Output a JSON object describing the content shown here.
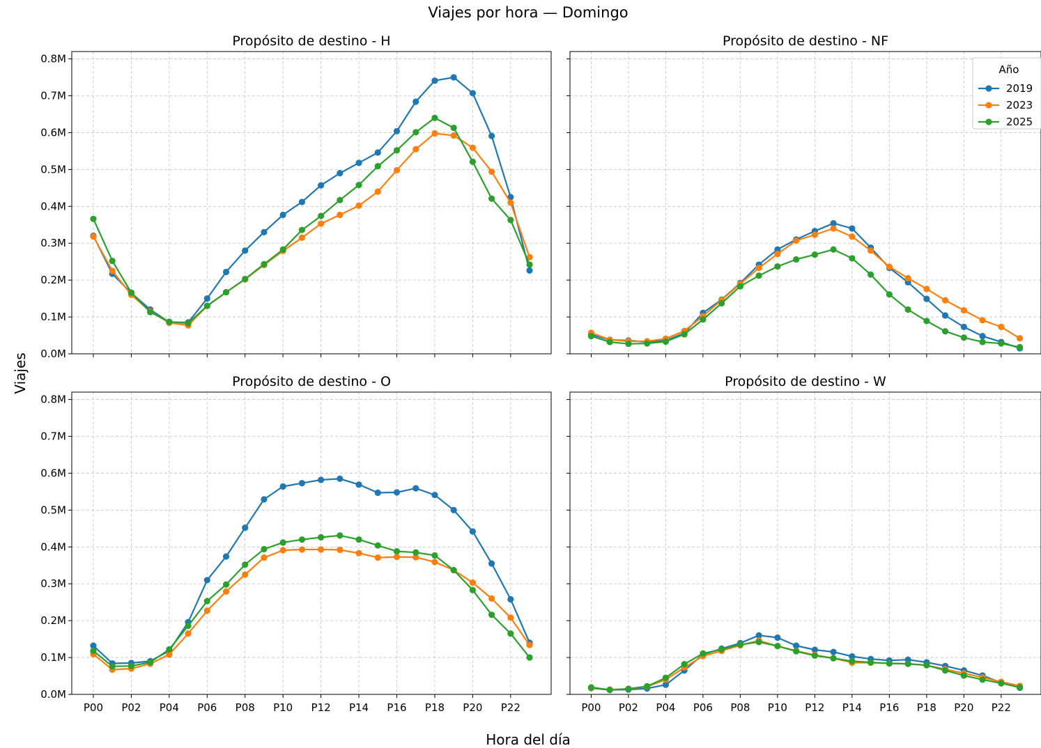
{
  "chart_data": {
    "type": "line",
    "title": "Viajes por hora — Domingo",
    "xlabel": "Hora del día",
    "ylabel": "Viajes",
    "ylim": [
      0,
      820000
    ],
    "y_ticks": [
      0,
      100000,
      200000,
      300000,
      400000,
      500000,
      600000,
      700000,
      800000
    ],
    "y_tick_labels": [
      "0.0M",
      "0.1M",
      "0.2M",
      "0.3M",
      "0.4M",
      "0.5M",
      "0.6M",
      "0.7M",
      "0.8M"
    ],
    "x": [
      "P00",
      "P01",
      "P02",
      "P03",
      "P04",
      "P05",
      "P06",
      "P07",
      "P08",
      "P09",
      "P10",
      "P11",
      "P12",
      "P13",
      "P14",
      "P15",
      "P16",
      "P17",
      "P18",
      "P19",
      "P20",
      "P21",
      "P22",
      "P23"
    ],
    "x_tick_labels": [
      "P00",
      "P02",
      "P04",
      "P06",
      "P08",
      "P10",
      "P12",
      "P14",
      "P16",
      "P18",
      "P20",
      "P22"
    ],
    "grid": true,
    "legend": {
      "title": "Año",
      "entries": [
        "2019",
        "2023",
        "2025"
      ],
      "placement": "top-right of panel NF"
    },
    "colors": {
      "2019": "#1f77b4",
      "2023": "#ff7f0e",
      "2025": "#2ca02c"
    },
    "panels": [
      {
        "title": "Propósito de destino - H",
        "series": [
          {
            "name": "2019",
            "values": [
              320000,
              217000,
              165000,
              120000,
              86000,
              85000,
              150000,
              222000,
              280000,
              330000,
              377000,
              412000,
              457000,
              490000,
              518000,
              546000,
              604000,
              684000,
              741000,
              750000,
              707000,
              591000,
              425000,
              226000
            ]
          },
          {
            "name": "2023",
            "values": [
              318000,
              225000,
              160000,
              115000,
              84000,
              77000,
              130000,
              167000,
              202000,
              241000,
              279000,
              315000,
              353000,
              377000,
              402000,
              440000,
              498000,
              555000,
              598000,
              592000,
              559000,
              494000,
              410000,
              262000
            ]
          },
          {
            "name": "2025",
            "values": [
              366000,
              252000,
              166000,
              113000,
              87000,
              83000,
              130000,
              167000,
              203000,
              243000,
              283000,
              336000,
              374000,
              417000,
              458000,
              509000,
              552000,
              601000,
              640000,
              613000,
              521000,
              421000,
              363000,
              242000
            ]
          }
        ]
      },
      {
        "title": "Propósito de destino - NF",
        "series": [
          {
            "name": "2019",
            "values": [
              52000,
              38000,
              36000,
              32000,
              36000,
              56000,
              111000,
              147000,
              192000,
              242000,
              283000,
              310000,
              333000,
              354000,
              340000,
              288000,
              233000,
              194000,
              149000,
              104000,
              73000,
              48000,
              32000,
              15000
            ]
          },
          {
            "name": "2023",
            "values": [
              57000,
              38000,
              34000,
              34000,
              41000,
              62000,
              102000,
              146000,
              190000,
              233000,
              271000,
              307000,
              323000,
              340000,
              318000,
              280000,
              236000,
              205000,
              176000,
              145000,
              118000,
              91000,
              73000,
              42000
            ]
          },
          {
            "name": "2025",
            "values": [
              48000,
              32000,
              27000,
              28000,
              33000,
              53000,
              93000,
              137000,
              183000,
              212000,
              237000,
              256000,
              269000,
              283000,
              259000,
              215000,
              161000,
              120000,
              89000,
              61000,
              44000,
              32000,
              28000,
              18000
            ]
          }
        ]
      },
      {
        "title": "Propósito de destino - O",
        "series": [
          {
            "name": "2019",
            "values": [
              132000,
              84000,
              85000,
              90000,
              118000,
              196000,
              310000,
              374000,
              452000,
              529000,
              564000,
              573000,
              582000,
              585000,
              569000,
              547000,
              548000,
              559000,
              541000,
              500000,
              442000,
              355000,
              258000,
              140000
            ]
          },
          {
            "name": "2023",
            "values": [
              109000,
              67000,
              70000,
              83000,
              108000,
              165000,
              227000,
              279000,
              325000,
              371000,
              391000,
              393000,
              393000,
              392000,
              383000,
              371000,
              373000,
              372000,
              359000,
              337000,
              303000,
              260000,
              208000,
              134000
            ]
          },
          {
            "name": "2025",
            "values": [
              118000,
              76000,
              77000,
              87000,
              122000,
              186000,
              253000,
              298000,
              352000,
              394000,
              412000,
              420000,
              426000,
              431000,
              420000,
              404000,
              388000,
              385000,
              377000,
              337000,
              283000,
              216000,
              165000,
              100000
            ]
          }
        ]
      },
      {
        "title": "Propósito de destino - W",
        "series": [
          {
            "name": "2019",
            "values": [
              17000,
              12000,
              13000,
              16000,
              26000,
              65000,
              108000,
              124000,
              139000,
              160000,
              154000,
              132000,
              121000,
              115000,
              103000,
              96000,
              92000,
              94000,
              87000,
              77000,
              65000,
              51000,
              32000,
              18000
            ]
          },
          {
            "name": "2023",
            "values": [
              18000,
              13000,
              15000,
              21000,
              40000,
              73000,
              104000,
              118000,
              133000,
              146000,
              131000,
              118000,
              107000,
              98000,
              86000,
              86000,
              84000,
              83000,
              79000,
              68000,
              57000,
              46000,
              34000,
              23000
            ]
          },
          {
            "name": "2025",
            "values": [
              19000,
              12000,
              15000,
              22000,
              45000,
              82000,
              111000,
              122000,
              135000,
              142000,
              131000,
              117000,
              105000,
              98000,
              90000,
              87000,
              84000,
              83000,
              79000,
              65000,
              51000,
              40000,
              30000,
              19000
            ]
          }
        ]
      }
    ]
  }
}
